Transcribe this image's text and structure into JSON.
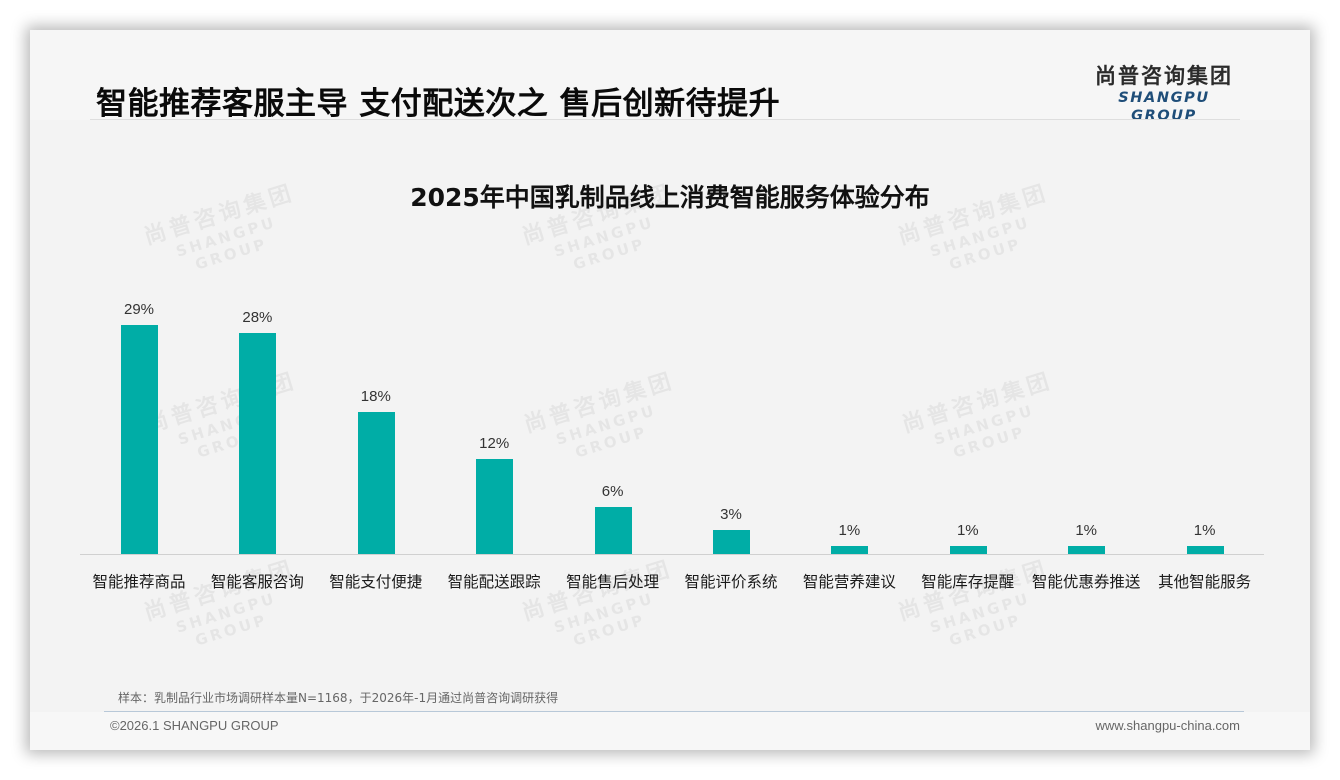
{
  "header": {
    "headline": "智能推荐客服主导 支付配送次之 售后创新待提升",
    "logo_cn": "尚普咨询集团",
    "logo_en": "SHANGPU GROUP"
  },
  "watermark": {
    "cn": "尚普咨询集团",
    "en": "SHANGPU GROUP"
  },
  "chart_data": {
    "type": "bar",
    "title": "2025年中国乳制品线上消费智能服务体验分布",
    "categories": [
      "智能推荐商品",
      "智能客服咨询",
      "智能支付便捷",
      "智能配送跟踪",
      "智能售后处理",
      "智能评价系统",
      "智能营养建议",
      "智能库存提醒",
      "智能优惠券推送",
      "其他智能服务"
    ],
    "values": [
      29,
      28,
      18,
      12,
      6,
      3,
      1,
      1,
      1,
      1
    ],
    "value_labels": [
      "29%",
      "28%",
      "18%",
      "12%",
      "6%",
      "3%",
      "1%",
      "1%",
      "1%",
      "1%"
    ],
    "unit": "%",
    "xlabel": "",
    "ylabel": "",
    "ylim": [
      0,
      30
    ],
    "grid": false,
    "legend": "none",
    "bar_color": "#00ada6"
  },
  "footer": {
    "note": "样本：乳制品行业市场调研样本量N=1168，于2026年-1月通过尚普咨询调研获得",
    "copyright": "©2026.1 SHANGPU GROUP",
    "website": "www.shangpu-china.com"
  }
}
